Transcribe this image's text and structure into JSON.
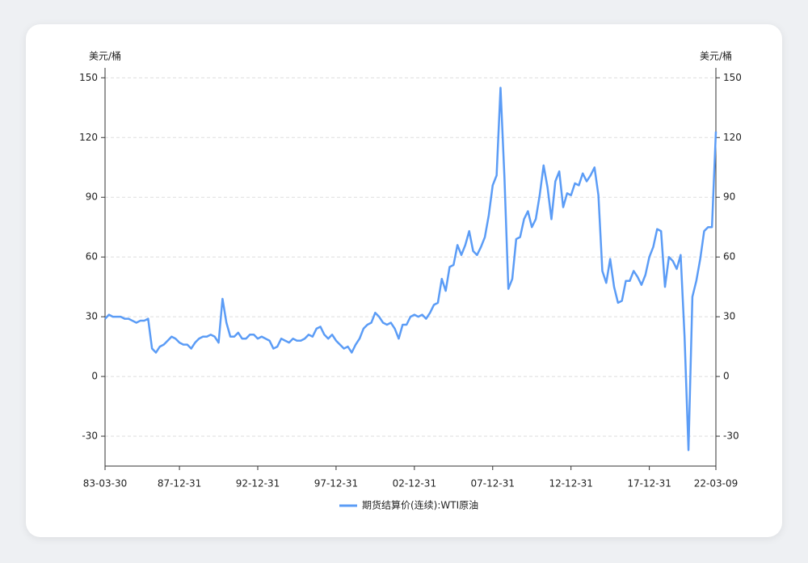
{
  "chart_data": {
    "type": "line",
    "ylabel": "美元/桶",
    "y2label": "美元/桶",
    "categories": [
      "83-03-30",
      null,
      null,
      null,
      null,
      null,
      null,
      null,
      null,
      null,
      null,
      null,
      null,
      null,
      null,
      null,
      null,
      null,
      null,
      "87-12-31",
      null,
      null,
      null,
      null,
      null,
      null,
      null,
      null,
      null,
      null,
      null,
      null,
      null,
      null,
      null,
      null,
      null,
      null,
      null,
      "92-12-31",
      null,
      null,
      null,
      null,
      null,
      null,
      null,
      null,
      null,
      null,
      null,
      null,
      null,
      null,
      null,
      null,
      null,
      null,
      null,
      "97-12-31",
      null,
      null,
      null,
      null,
      null,
      null,
      null,
      null,
      null,
      null,
      null,
      null,
      null,
      null,
      null,
      null,
      null,
      null,
      null,
      "02-12-31",
      null,
      null,
      null,
      null,
      null,
      null,
      null,
      null,
      null,
      null,
      null,
      null,
      null,
      null,
      null,
      null,
      null,
      null,
      null,
      "07-12-31",
      null,
      null,
      null,
      null,
      null,
      null,
      null,
      null,
      null,
      null,
      null,
      null,
      null,
      null,
      null,
      null,
      null,
      null,
      null,
      "12-12-31",
      null,
      null,
      null,
      null,
      null,
      null,
      null,
      null,
      null,
      null,
      null,
      null,
      null,
      null,
      null,
      null,
      null,
      null,
      null,
      "17-12-31",
      null,
      null,
      null,
      null,
      null,
      null,
      null,
      null,
      null,
      null,
      null,
      null,
      null,
      null,
      null,
      null,
      "22-03-09"
    ],
    "series": [
      {
        "name": "期货结算价(连续):WTI原油",
        "color": "#5b9cf6",
        "values": [
          29,
          31,
          30,
          30,
          30,
          29,
          29,
          28,
          27,
          28,
          28,
          29,
          14,
          12,
          15,
          16,
          18,
          20,
          19,
          17,
          16,
          16,
          14,
          17,
          19,
          20,
          20,
          21,
          20,
          17,
          39,
          27,
          20,
          20,
          22,
          19,
          19,
          21,
          21,
          19,
          20,
          19,
          18,
          14,
          15,
          19,
          18,
          17,
          19,
          18,
          18,
          19,
          21,
          20,
          24,
          25,
          21,
          19,
          21,
          18,
          16,
          14,
          15,
          12,
          16,
          19,
          24,
          26,
          27,
          32,
          30,
          27,
          26,
          27,
          24,
          19,
          26,
          26,
          30,
          31,
          30,
          31,
          29,
          32,
          36,
          37,
          49,
          43,
          55,
          56,
          66,
          61,
          66,
          73,
          63,
          61,
          65,
          70,
          81,
          96,
          101,
          145,
          100,
          44,
          49,
          69,
          70,
          79,
          83,
          75,
          79,
          91,
          106,
          95,
          79,
          98,
          103,
          85,
          92,
          91,
          97,
          96,
          102,
          98,
          101,
          105,
          91,
          53,
          47,
          59,
          45,
          37,
          38,
          48,
          48,
          53,
          50,
          46,
          51,
          60,
          65,
          74,
          73,
          45,
          60,
          58,
          54,
          61,
          20,
          -37,
          40,
          48,
          59,
          73,
          75,
          75,
          123
        ]
      }
    ],
    "ylim": [
      -45,
      155
    ],
    "yticks": [
      -30,
      0,
      30,
      60,
      90,
      120,
      150
    ],
    "y2lim": [
      -45,
      155
    ],
    "y2ticks": [
      -30,
      0,
      30,
      60,
      90,
      120,
      150
    ],
    "grid": true
  }
}
